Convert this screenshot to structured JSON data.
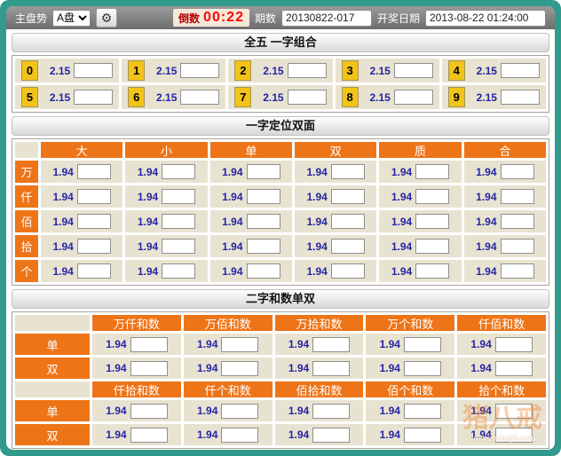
{
  "colors": {
    "frame_teal": "#319a8c",
    "header_orange": "#ee7418",
    "cell_beige": "#e8e3d1",
    "digit_yellow": "#f2c318",
    "odds_blue": "#2525a5",
    "countdown_red": "#ff0000"
  },
  "icons": {
    "gear": "⚙"
  },
  "topbar": {
    "panel_label": "主盘势",
    "panel_selected": "A盘",
    "panel_options": [
      "A盘"
    ],
    "countdown_label": "倒数",
    "countdown_value": "00:22",
    "issue_label": "期数",
    "issue_value": "20130822-017",
    "draw_label": "开奖日期",
    "draw_value": "2013-08-22 01:24:00"
  },
  "section_combo": {
    "title": "全五 一字组合",
    "odds": "2.15",
    "digits": [
      "0",
      "1",
      "2",
      "3",
      "4",
      "5",
      "6",
      "7",
      "8",
      "9"
    ]
  },
  "section_position": {
    "title": "一字定位双面",
    "columns": [
      "大",
      "小",
      "单",
      "双",
      "质",
      "合"
    ],
    "rows": [
      "万",
      "仟",
      "佰",
      "拾",
      "个"
    ],
    "odds": "1.94"
  },
  "section_sum": {
    "title": "二字和数单双",
    "odds": "1.94",
    "row_labels": [
      "单",
      "双"
    ],
    "groups": [
      {
        "headers": [
          "万仟和数",
          "万佰和数",
          "万拾和数",
          "万个和数",
          "仟佰和数"
        ]
      },
      {
        "headers": [
          "仟拾和数",
          "仟个和数",
          "佰拾和数",
          "佰个和数",
          "拾个和数"
        ]
      }
    ]
  },
  "watermark": {
    "brand": "猪八戒",
    "url": "www.zhubajie.com"
  }
}
